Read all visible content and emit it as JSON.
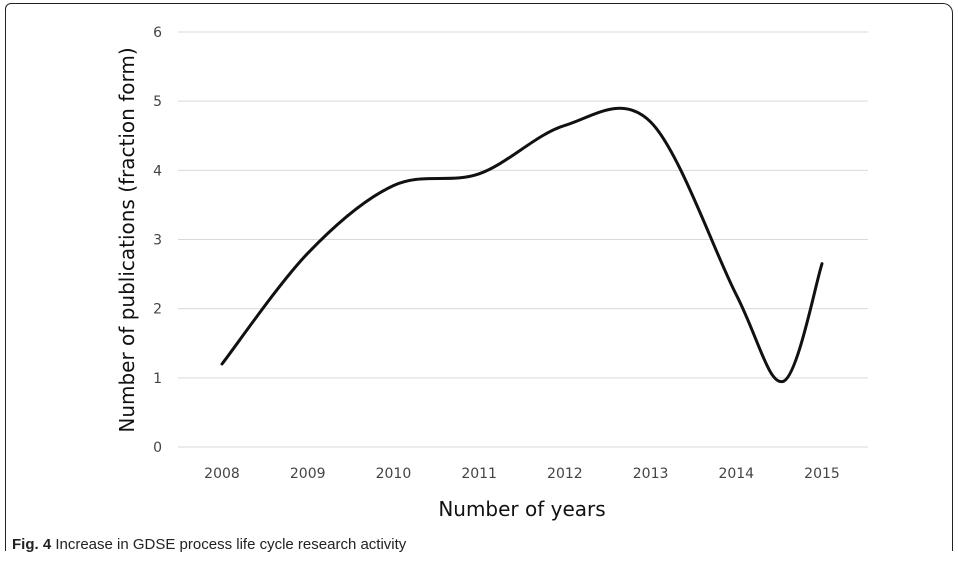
{
  "chart_data": {
    "type": "line",
    "title": "",
    "xlabel": "Number of years",
    "ylabel": "Number of publications (fraction form)",
    "x": [
      2008,
      2009,
      2010,
      2011,
      2012,
      2013,
      2014,
      2014.55,
      2015
    ],
    "y": [
      1.2,
      2.8,
      3.78,
      3.95,
      4.65,
      4.7,
      2.2,
      0.95,
      2.65
    ],
    "xlim": [
      2008,
      2015
    ],
    "ylim": [
      0,
      6
    ],
    "x_ticks": [
      "2008",
      "2009",
      "2010",
      "2011",
      "2012",
      "2013",
      "2014",
      "2015"
    ],
    "y_ticks": [
      "0",
      "1",
      "2",
      "3",
      "4",
      "5",
      "6"
    ],
    "grid": "horizontal",
    "line_color": "#111111"
  },
  "caption": {
    "label": "Fig. 4",
    "text": " Increase in GDSE process life cycle research activity"
  }
}
